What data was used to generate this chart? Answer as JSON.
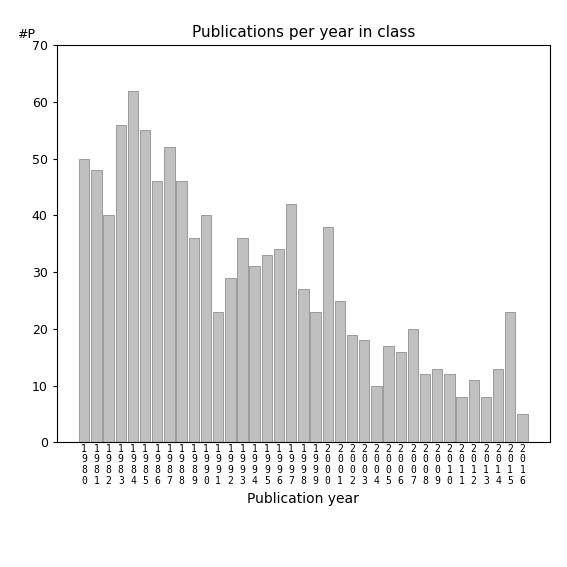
{
  "title": "Publications per year in class",
  "xlabel": "Publication year",
  "ylabel": "#P",
  "ylim": [
    0,
    70
  ],
  "yticks": [
    0,
    10,
    20,
    30,
    40,
    50,
    60,
    70
  ],
  "bar_color": "#c0c0c0",
  "bar_edgecolor": "#808080",
  "background_color": "#ffffff",
  "years": [
    1980,
    1981,
    1982,
    1983,
    1984,
    1985,
    1986,
    1987,
    1988,
    1989,
    1990,
    1991,
    1992,
    1993,
    1994,
    1995,
    1996,
    1997,
    1998,
    1999,
    2000,
    2001,
    2002,
    2003,
    2004,
    2005,
    2006,
    2007,
    2008,
    2009,
    2010,
    2011,
    2012,
    2013,
    2014,
    2015,
    2016
  ],
  "values": [
    50,
    48,
    40,
    56,
    62,
    55,
    46,
    52,
    46,
    36,
    40,
    23,
    29,
    36,
    31,
    33,
    34,
    42,
    27,
    23,
    38,
    25,
    19,
    18,
    10,
    17,
    16,
    20,
    12,
    13,
    12,
    8,
    11,
    8,
    13,
    23,
    5
  ],
  "title_fontsize": 11,
  "xlabel_fontsize": 10,
  "tick_fontsize": 9,
  "xtick_fontsize": 7
}
